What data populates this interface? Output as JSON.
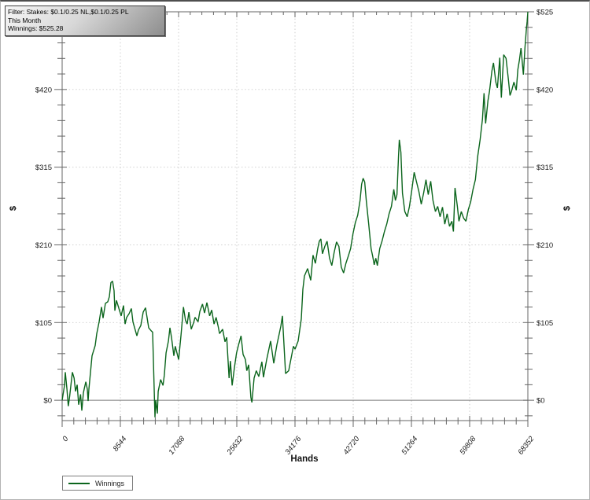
{
  "window": {
    "background": "#ffffff",
    "border_color": "#b3b3b3"
  },
  "filter_box": {
    "line1": "Filter: Stakes: $0.1/0.25 NL,$0.1/0.25 PL",
    "line2": "This Month",
    "line3": "Winnings: $525.28"
  },
  "legend": {
    "label": "Winnings"
  },
  "axes": {
    "x": {
      "title": "Hands",
      "tick_labels": [
        "0",
        "8544",
        "17088",
        "25632",
        "34176",
        "42720",
        "51264",
        "59808",
        "68352"
      ],
      "tick_values": [
        0,
        8544,
        17088,
        25632,
        34176,
        42720,
        51264,
        59808,
        68352
      ],
      "minor_per_major": 5
    },
    "y": {
      "title": "$",
      "tick_labels": [
        "$0",
        "$105",
        "$210",
        "$315",
        "$420",
        "$525"
      ],
      "tick_values": [
        0,
        105,
        210,
        315,
        420,
        525
      ],
      "minor_step": 21
    }
  },
  "colors": {
    "line": "#0b651c",
    "grid": "#c9c9c9",
    "axis": "#666666",
    "zero_line": "#7a7a7a",
    "tick_text": "#1b1b1b"
  },
  "chart_data": {
    "type": "line",
    "title": "",
    "xlabel": "Hands",
    "ylabel": "$",
    "xlim": [
      0,
      68352
    ],
    "ylim": [
      -27.5,
      525
    ],
    "grid": "dotted-at-major-ticks",
    "legend_position": "bottom-left",
    "series": [
      {
        "name": "Winnings",
        "color": "#0b651c",
        "points": [
          [
            0,
            0
          ],
          [
            350,
            20
          ],
          [
            460,
            38
          ],
          [
            700,
            15
          ],
          [
            900,
            -8
          ],
          [
            1100,
            5
          ],
          [
            1500,
            38
          ],
          [
            1750,
            30
          ],
          [
            1960,
            12
          ],
          [
            2200,
            21
          ],
          [
            2430,
            -6
          ],
          [
            2700,
            8
          ],
          [
            2890,
            -14
          ],
          [
            3120,
            10
          ],
          [
            3300,
            18
          ],
          [
            3470,
            25
          ],
          [
            3700,
            15
          ],
          [
            3810,
            -1
          ],
          [
            3930,
            15
          ],
          [
            4390,
            60
          ],
          [
            4850,
            74
          ],
          [
            5080,
            90
          ],
          [
            5430,
            106
          ],
          [
            5770,
            126
          ],
          [
            6000,
            111
          ],
          [
            6350,
            131
          ],
          [
            6700,
            133
          ],
          [
            6930,
            140
          ],
          [
            7160,
            159
          ],
          [
            7400,
            161
          ],
          [
            7620,
            148
          ],
          [
            7740,
            121
          ],
          [
            7970,
            135
          ],
          [
            8300,
            125
          ],
          [
            8660,
            114
          ],
          [
            9010,
            128
          ],
          [
            9240,
            103
          ],
          [
            9470,
            112
          ],
          [
            9820,
            117
          ],
          [
            10160,
            124
          ],
          [
            10390,
            106
          ],
          [
            10970,
            87
          ],
          [
            11200,
            95
          ],
          [
            11550,
            101
          ],
          [
            11890,
            119
          ],
          [
            12240,
            125
          ],
          [
            12700,
            98
          ],
          [
            13050,
            94
          ],
          [
            13280,
            92
          ],
          [
            13620,
            -23
          ],
          [
            13740,
            0
          ],
          [
            13970,
            -18
          ],
          [
            14100,
            12
          ],
          [
            14450,
            28
          ],
          [
            14800,
            20
          ],
          [
            15000,
            34
          ],
          [
            15250,
            64
          ],
          [
            15600,
            80
          ],
          [
            15820,
            98
          ],
          [
            16050,
            85
          ],
          [
            16400,
            60
          ],
          [
            16600,
            73
          ],
          [
            17100,
            55
          ],
          [
            17450,
            88
          ],
          [
            17800,
            126
          ],
          [
            18100,
            108
          ],
          [
            18350,
            103
          ],
          [
            18600,
            119
          ],
          [
            18950,
            96
          ],
          [
            19300,
            105
          ],
          [
            19500,
            112
          ],
          [
            19950,
            106
          ],
          [
            20200,
            120
          ],
          [
            20600,
            130
          ],
          [
            20900,
            118
          ],
          [
            21250,
            132
          ],
          [
            21650,
            114
          ],
          [
            21950,
            122
          ],
          [
            22300,
            103
          ],
          [
            22600,
            112
          ],
          [
            22900,
            100
          ],
          [
            23100,
            90
          ],
          [
            23550,
            96
          ],
          [
            23900,
            79
          ],
          [
            24150,
            85
          ],
          [
            24500,
            30
          ],
          [
            24700,
            53
          ],
          [
            24950,
            20
          ],
          [
            25300,
            45
          ],
          [
            25600,
            64
          ],
          [
            25900,
            75
          ],
          [
            26250,
            87
          ],
          [
            26550,
            62
          ],
          [
            26900,
            55
          ],
          [
            27100,
            40
          ],
          [
            27380,
            48
          ],
          [
            27700,
            4
          ],
          [
            27850,
            -3
          ],
          [
            28170,
            30
          ],
          [
            28500,
            40
          ],
          [
            28860,
            32
          ],
          [
            29320,
            52
          ],
          [
            29550,
            31
          ],
          [
            30020,
            55
          ],
          [
            30600,
            80
          ],
          [
            31060,
            50
          ],
          [
            31520,
            75
          ],
          [
            32100,
            100
          ],
          [
            32330,
            114
          ],
          [
            32790,
            36
          ],
          [
            33250,
            40
          ],
          [
            33940,
            73
          ],
          [
            34180,
            69
          ],
          [
            34640,
            80
          ],
          [
            35100,
            110
          ],
          [
            35330,
            150
          ],
          [
            35560,
            168
          ],
          [
            36020,
            178
          ],
          [
            36480,
            162
          ],
          [
            36820,
            196
          ],
          [
            37170,
            185
          ],
          [
            37510,
            205
          ],
          [
            37740,
            215
          ],
          [
            37970,
            218
          ],
          [
            38200,
            198
          ],
          [
            38550,
            208
          ],
          [
            38890,
            215
          ],
          [
            39240,
            192
          ],
          [
            39580,
            182
          ],
          [
            39930,
            200
          ],
          [
            40270,
            214
          ],
          [
            40620,
            208
          ],
          [
            40960,
            180
          ],
          [
            41310,
            172
          ],
          [
            41650,
            185
          ],
          [
            42000,
            195
          ],
          [
            42340,
            205
          ],
          [
            42690,
            225
          ],
          [
            43030,
            240
          ],
          [
            43380,
            250
          ],
          [
            43720,
            270
          ],
          [
            43950,
            292
          ],
          [
            44180,
            300
          ],
          [
            44410,
            295
          ],
          [
            44640,
            270
          ],
          [
            44990,
            238
          ],
          [
            45340,
            205
          ],
          [
            45570,
            195
          ],
          [
            45800,
            183
          ],
          [
            46030,
            192
          ],
          [
            46260,
            182
          ],
          [
            46610,
            205
          ],
          [
            46950,
            215
          ],
          [
            47300,
            228
          ],
          [
            47640,
            238
          ],
          [
            47990,
            252
          ],
          [
            48330,
            262
          ],
          [
            48680,
            285
          ],
          [
            48910,
            270
          ],
          [
            49140,
            278
          ],
          [
            49370,
            330
          ],
          [
            49490,
            352
          ],
          [
            49720,
            335
          ],
          [
            49950,
            280
          ],
          [
            50290,
            255
          ],
          [
            50640,
            248
          ],
          [
            50980,
            262
          ],
          [
            51330,
            285
          ],
          [
            51670,
            308
          ],
          [
            52020,
            295
          ],
          [
            52360,
            282
          ],
          [
            52710,
            265
          ],
          [
            53050,
            280
          ],
          [
            53400,
            298
          ],
          [
            53740,
            278
          ],
          [
            54090,
            296
          ],
          [
            54430,
            270
          ],
          [
            54780,
            255
          ],
          [
            55120,
            262
          ],
          [
            55470,
            248
          ],
          [
            55820,
            261
          ],
          [
            56160,
            238
          ],
          [
            56510,
            252
          ],
          [
            56850,
            235
          ],
          [
            57200,
            242
          ],
          [
            57430,
            228
          ],
          [
            57660,
            287
          ],
          [
            58010,
            262
          ],
          [
            58240,
            242
          ],
          [
            58580,
            255
          ],
          [
            58930,
            246
          ],
          [
            59270,
            242
          ],
          [
            59620,
            258
          ],
          [
            59960,
            268
          ],
          [
            60310,
            285
          ],
          [
            60650,
            298
          ],
          [
            61000,
            330
          ],
          [
            61340,
            352
          ],
          [
            61690,
            380
          ],
          [
            61920,
            415
          ],
          [
            62150,
            374
          ],
          [
            62500,
            405
          ],
          [
            62730,
            418
          ],
          [
            63070,
            445
          ],
          [
            63310,
            456
          ],
          [
            63650,
            430
          ],
          [
            63880,
            422
          ],
          [
            64230,
            463
          ],
          [
            64460,
            409
          ],
          [
            64810,
            467
          ],
          [
            65150,
            462
          ],
          [
            65500,
            433
          ],
          [
            65730,
            412
          ],
          [
            65960,
            418
          ],
          [
            66310,
            430
          ],
          [
            66650,
            419
          ],
          [
            66890,
            447
          ],
          [
            67120,
            460
          ],
          [
            67350,
            476
          ],
          [
            67690,
            440
          ],
          [
            67920,
            476
          ],
          [
            68120,
            500
          ],
          [
            68250,
            512
          ],
          [
            68352,
            525
          ]
        ]
      }
    ]
  }
}
